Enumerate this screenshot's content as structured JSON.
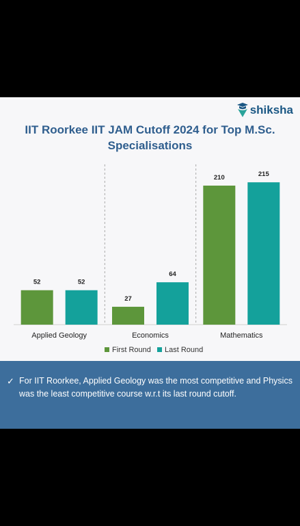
{
  "brand": {
    "name": "shiksha",
    "color": "#1a5784",
    "logo_icon": "graduate-cap-icon"
  },
  "chart_data": {
    "type": "bar",
    "title_lines": [
      "IIT Roorkee IIT JAM Cutoff 2024 for Top M.Sc.",
      "Specialisations"
    ],
    "categories": [
      "Applied Geology",
      "Economics",
      "Mathematics"
    ],
    "series": [
      {
        "name": "First Round",
        "values": [
          52,
          27,
          210
        ],
        "color": "#5d963b"
      },
      {
        "name": "Last Round",
        "values": [
          52,
          64,
          215
        ],
        "color": "#14a19b"
      }
    ],
    "ylim": [
      0,
      240
    ],
    "xlabel": "",
    "ylabel": "",
    "grid": false,
    "legend": "bottom"
  },
  "note": {
    "icon": "checkmark-icon",
    "text": "For IIT Roorkee, Applied Geology was the most competitive and Physics was the least competitive course w.r.t its last round cutoff."
  },
  "colors": {
    "title": "#2f5e8e",
    "footer_bg": "#3d6e9c",
    "page_bg": "#000000",
    "card_bg": "#f7f7f9"
  }
}
